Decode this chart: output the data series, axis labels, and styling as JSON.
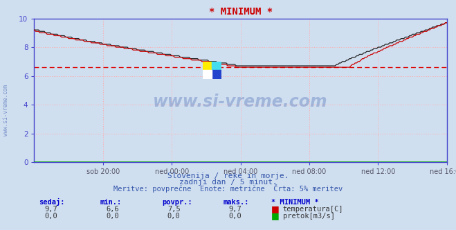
{
  "title": "* MINIMUM *",
  "bg_color": "#d0dff0",
  "plot_bg_color": "#d0dff0",
  "grid_color_major": "#ffaaaa",
  "grid_color_minor": "#ffcccc",
  "axis_color": "#4444cc",
  "tick_color": "#4444cc",
  "ylim": [
    0,
    10.0
  ],
  "xlim": [
    0,
    288
  ],
  "yticks": [
    0,
    2,
    4,
    6,
    8,
    10
  ],
  "xtick_labels": [
    "sob 20:00",
    "ned 00:00",
    "ned 04:00",
    "ned 08:00",
    "ned 12:00",
    "ned 16:00"
  ],
  "xtick_positions": [
    48,
    96,
    144,
    192,
    240,
    288
  ],
  "subtitle1": "Slovenija / reke in morje.",
  "subtitle2": "zadnji dan / 5 minut.",
  "subtitle3": "Meritve: povprečne  Enote: metrične  Črta: 5% meritev",
  "watermark_text": "www.si-vreme.com",
  "min_line_value": 6.6,
  "min_line_color": "#dd0000",
  "temp_color": "#cc0000",
  "black_line_color": "#222222",
  "pretok_color": "#00aa00",
  "sedaj_label": "sedaj:",
  "min_label": "min.:",
  "povpr_label": "povpr.:",
  "maks_label": "maks.:",
  "station_label": "* MINIMUM *",
  "temp_sedaj": "9,7",
  "temp_min": "6,6",
  "temp_povpr": "7,5",
  "temp_maks": "9,7",
  "pretok_sedaj": "0,0",
  "pretok_min": "0,0",
  "pretok_povpr": "0,0",
  "pretok_maks": "0,0",
  "temp_label": "temperatura[C]",
  "pretok_label": "pretok[m3/s]",
  "left_text": "www.si-vreme.com"
}
